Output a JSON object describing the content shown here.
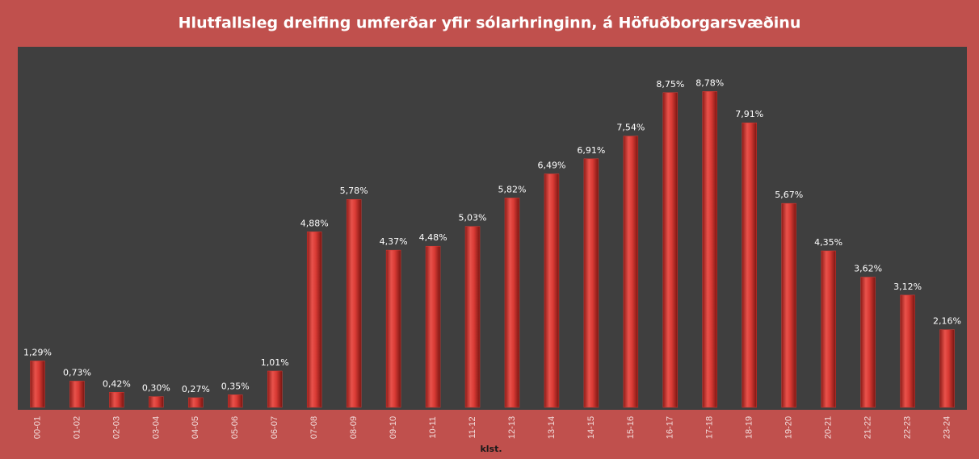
{
  "chart_data": {
    "type": "bar",
    "title": "Hlutfallsleg dreifing umferðar yfir sólarhringinn, á Höfuðborgarsvæðinu",
    "x_label": "klst.",
    "categories": [
      "00-01",
      "01-02",
      "02-03",
      "03-04",
      "04-05",
      "05-06",
      "06-07",
      "07-08",
      "08-09",
      "09-10",
      "10-11",
      "11-12",
      "12-13",
      "13-14",
      "14-15",
      "15-16",
      "16-17",
      "17-18",
      "18-19",
      "19-20",
      "20-21",
      "21-22",
      "22-23",
      "23-24"
    ],
    "values": [
      1.29,
      0.73,
      0.42,
      0.3,
      0.27,
      0.35,
      1.01,
      4.88,
      5.78,
      4.37,
      4.48,
      5.03,
      5.82,
      6.49,
      6.91,
      7.54,
      8.75,
      8.78,
      7.91,
      5.67,
      4.35,
      3.62,
      3.12,
      2.16
    ],
    "value_labels": [
      "1,29%",
      "0,73%",
      "0,42%",
      "0,30%",
      "0,27%",
      "0,35%",
      "1,01%",
      "4,88%",
      "5,78%",
      "4,37%",
      "4,48%",
      "5,03%",
      "5,82%",
      "6,49%",
      "6,91%",
      "7,54%",
      "8,75%",
      "8,78%",
      "7,91%",
      "5,67%",
      "4,35%",
      "3,62%",
      "3,12%",
      "2,16%"
    ],
    "color": "#d93a34",
    "ylim": [
      0,
      10
    ]
  }
}
